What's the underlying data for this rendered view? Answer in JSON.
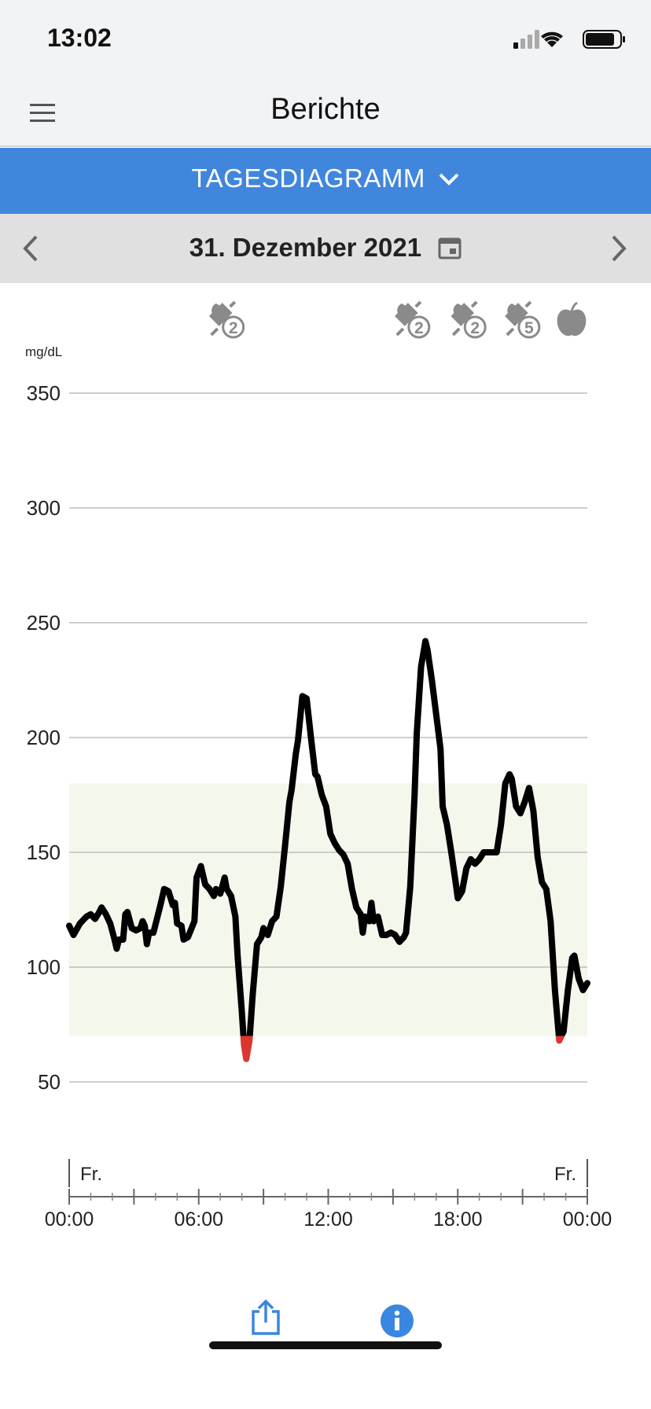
{
  "status": {
    "time": "13:02"
  },
  "header": {
    "title": "Berichte"
  },
  "tab": {
    "label": "TAGESDIAGRAMM"
  },
  "date": {
    "label": "31. Dezember 2021"
  },
  "chart_data": {
    "type": "line",
    "unit_label": "mg/dL",
    "ylim": [
      50,
      350
    ],
    "yticks": [
      50,
      100,
      150,
      200,
      250,
      300,
      350
    ],
    "grid": true,
    "xlim": [
      0,
      24
    ],
    "xticks": [
      {
        "value": 0,
        "label": "00:00"
      },
      {
        "value": 6,
        "label": "06:00"
      },
      {
        "value": 12,
        "label": "12:00"
      },
      {
        "value": 18,
        "label": "18:00"
      },
      {
        "value": 24,
        "label": "00:00"
      }
    ],
    "xticks_major": [
      3,
      9,
      15,
      21
    ],
    "xticks_minor": [
      1,
      2,
      4,
      5,
      7,
      8,
      10,
      11,
      13,
      14,
      16,
      17,
      19,
      20,
      22,
      23
    ],
    "day_labels": [
      {
        "x": 0,
        "label": "Fr."
      },
      {
        "x": 24,
        "label": "Fr."
      }
    ],
    "target_range": [
      70,
      180
    ],
    "target_color": "#f4f7ec",
    "events": [
      {
        "x": 7.6,
        "label": "2"
      },
      {
        "x": 16.2,
        "label": "2"
      },
      {
        "x": 18.8,
        "label": "2"
      },
      {
        "x": 21.3,
        "label": "5"
      }
    ],
    "series": [
      {
        "name": "Glukose",
        "color": "#000000",
        "low_color": "#d9372e",
        "x": [
          0,
          0.2,
          0.5,
          0.8,
          1,
          1.2,
          1.4,
          1.5,
          1.7,
          1.9,
          2.1,
          2.2,
          2.3,
          2.5,
          2.6,
          2.7,
          2.9,
          3.1,
          3.3,
          3.4,
          3.5,
          3.6,
          3.7,
          3.9,
          4.2,
          4.4,
          4.6,
          4.8,
          4.9,
          5,
          5.2,
          5.3,
          5.5,
          5.8,
          5.9,
          6.1,
          6.3,
          6.5,
          6.7,
          6.8,
          7,
          7.2,
          7.3,
          7.5,
          7.7,
          7.8,
          8,
          8.1,
          8.2,
          8.35,
          8.5,
          8.7,
          8.9,
          9,
          9.2,
          9.4,
          9.6,
          9.8,
          10,
          10.2,
          10.3,
          10.5,
          10.6,
          10.8,
          11,
          11.2,
          11.4,
          11.5,
          11.7,
          11.9,
          12.1,
          12.3,
          12.5,
          12.7,
          12.9,
          13.1,
          13.3,
          13.5,
          13.6,
          13.7,
          13.9,
          14,
          14.1,
          14.3,
          14.5,
          14.7,
          14.9,
          15.1,
          15.3,
          15.5,
          15.6,
          15.8,
          16,
          16.1,
          16.3,
          16.5,
          16.6,
          16.8,
          17,
          17.2,
          17.3,
          17.5,
          17.7,
          17.9,
          18,
          18.2,
          18.4,
          18.6,
          18.8,
          19,
          19.2,
          19.5,
          19.8,
          20,
          20.2,
          20.4,
          20.5,
          20.7,
          20.9,
          21.1,
          21.3,
          21.5,
          21.7,
          21.9,
          22.1,
          22.3,
          22.5,
          22.7,
          22.9,
          23.1,
          23.3,
          23.4,
          23.6,
          23.8,
          24
        ],
        "values": [
          118,
          114,
          119,
          122,
          123,
          121,
          124,
          126,
          123,
          119,
          112,
          108,
          112,
          112,
          123,
          124,
          117,
          116,
          117,
          120,
          118,
          110,
          115,
          115,
          126,
          134,
          133,
          127,
          128,
          119,
          118,
          112,
          113,
          120,
          139,
          144,
          136,
          134,
          131,
          134,
          132,
          139,
          134,
          131,
          122,
          105,
          80,
          66,
          60,
          68,
          88,
          110,
          113,
          117,
          114,
          120,
          122,
          135,
          153,
          172,
          177,
          193,
          199,
          218,
          217,
          200,
          184,
          183,
          175,
          170,
          158,
          154,
          151,
          149,
          145,
          134,
          126,
          123,
          115,
          122,
          120,
          128,
          120,
          122,
          114,
          114,
          115,
          114,
          111,
          113,
          115,
          135,
          175,
          202,
          231,
          242,
          238,
          225,
          210,
          195,
          170,
          162,
          150,
          137,
          130,
          133,
          143,
          147,
          145,
          147,
          150,
          150,
          150,
          162,
          180,
          184,
          182,
          170,
          167,
          172,
          178,
          168,
          148,
          137,
          134,
          120,
          90,
          68,
          72,
          90,
          104,
          105,
          95,
          90,
          93
        ]
      }
    ]
  }
}
